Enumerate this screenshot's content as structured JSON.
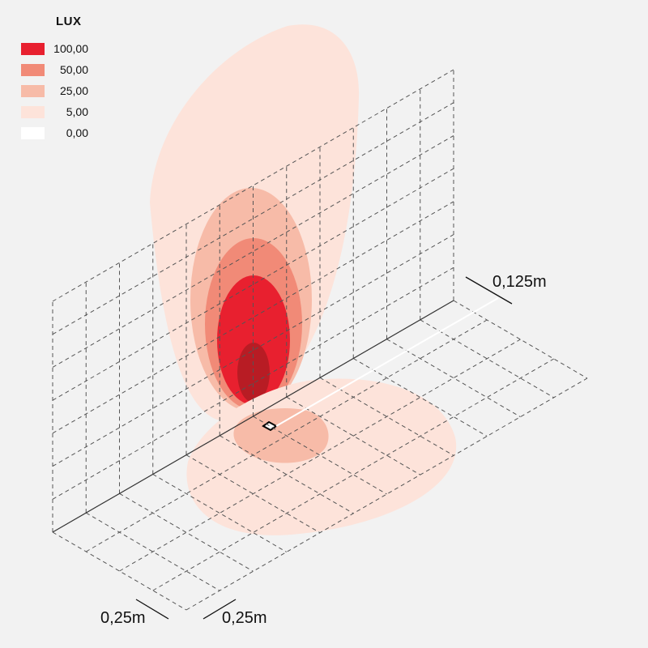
{
  "legend": {
    "title": "LUX",
    "items": [
      {
        "value": "100,00",
        "color": "#e8202f"
      },
      {
        "value": "50,00",
        "color": "#f18a77"
      },
      {
        "value": "25,00",
        "color": "#f7bba8"
      },
      {
        "value": "5,00",
        "color": "#fde3da"
      },
      {
        "value": "0,00",
        "color": "#ffffff"
      }
    ]
  },
  "dimensions": {
    "offset": "0,125m",
    "grid_x": "0,25m",
    "grid_y": "0,25m"
  },
  "colors": {
    "background": "#f2f2f2",
    "hotspot": "#b81c24",
    "grid_line": "#555555"
  }
}
